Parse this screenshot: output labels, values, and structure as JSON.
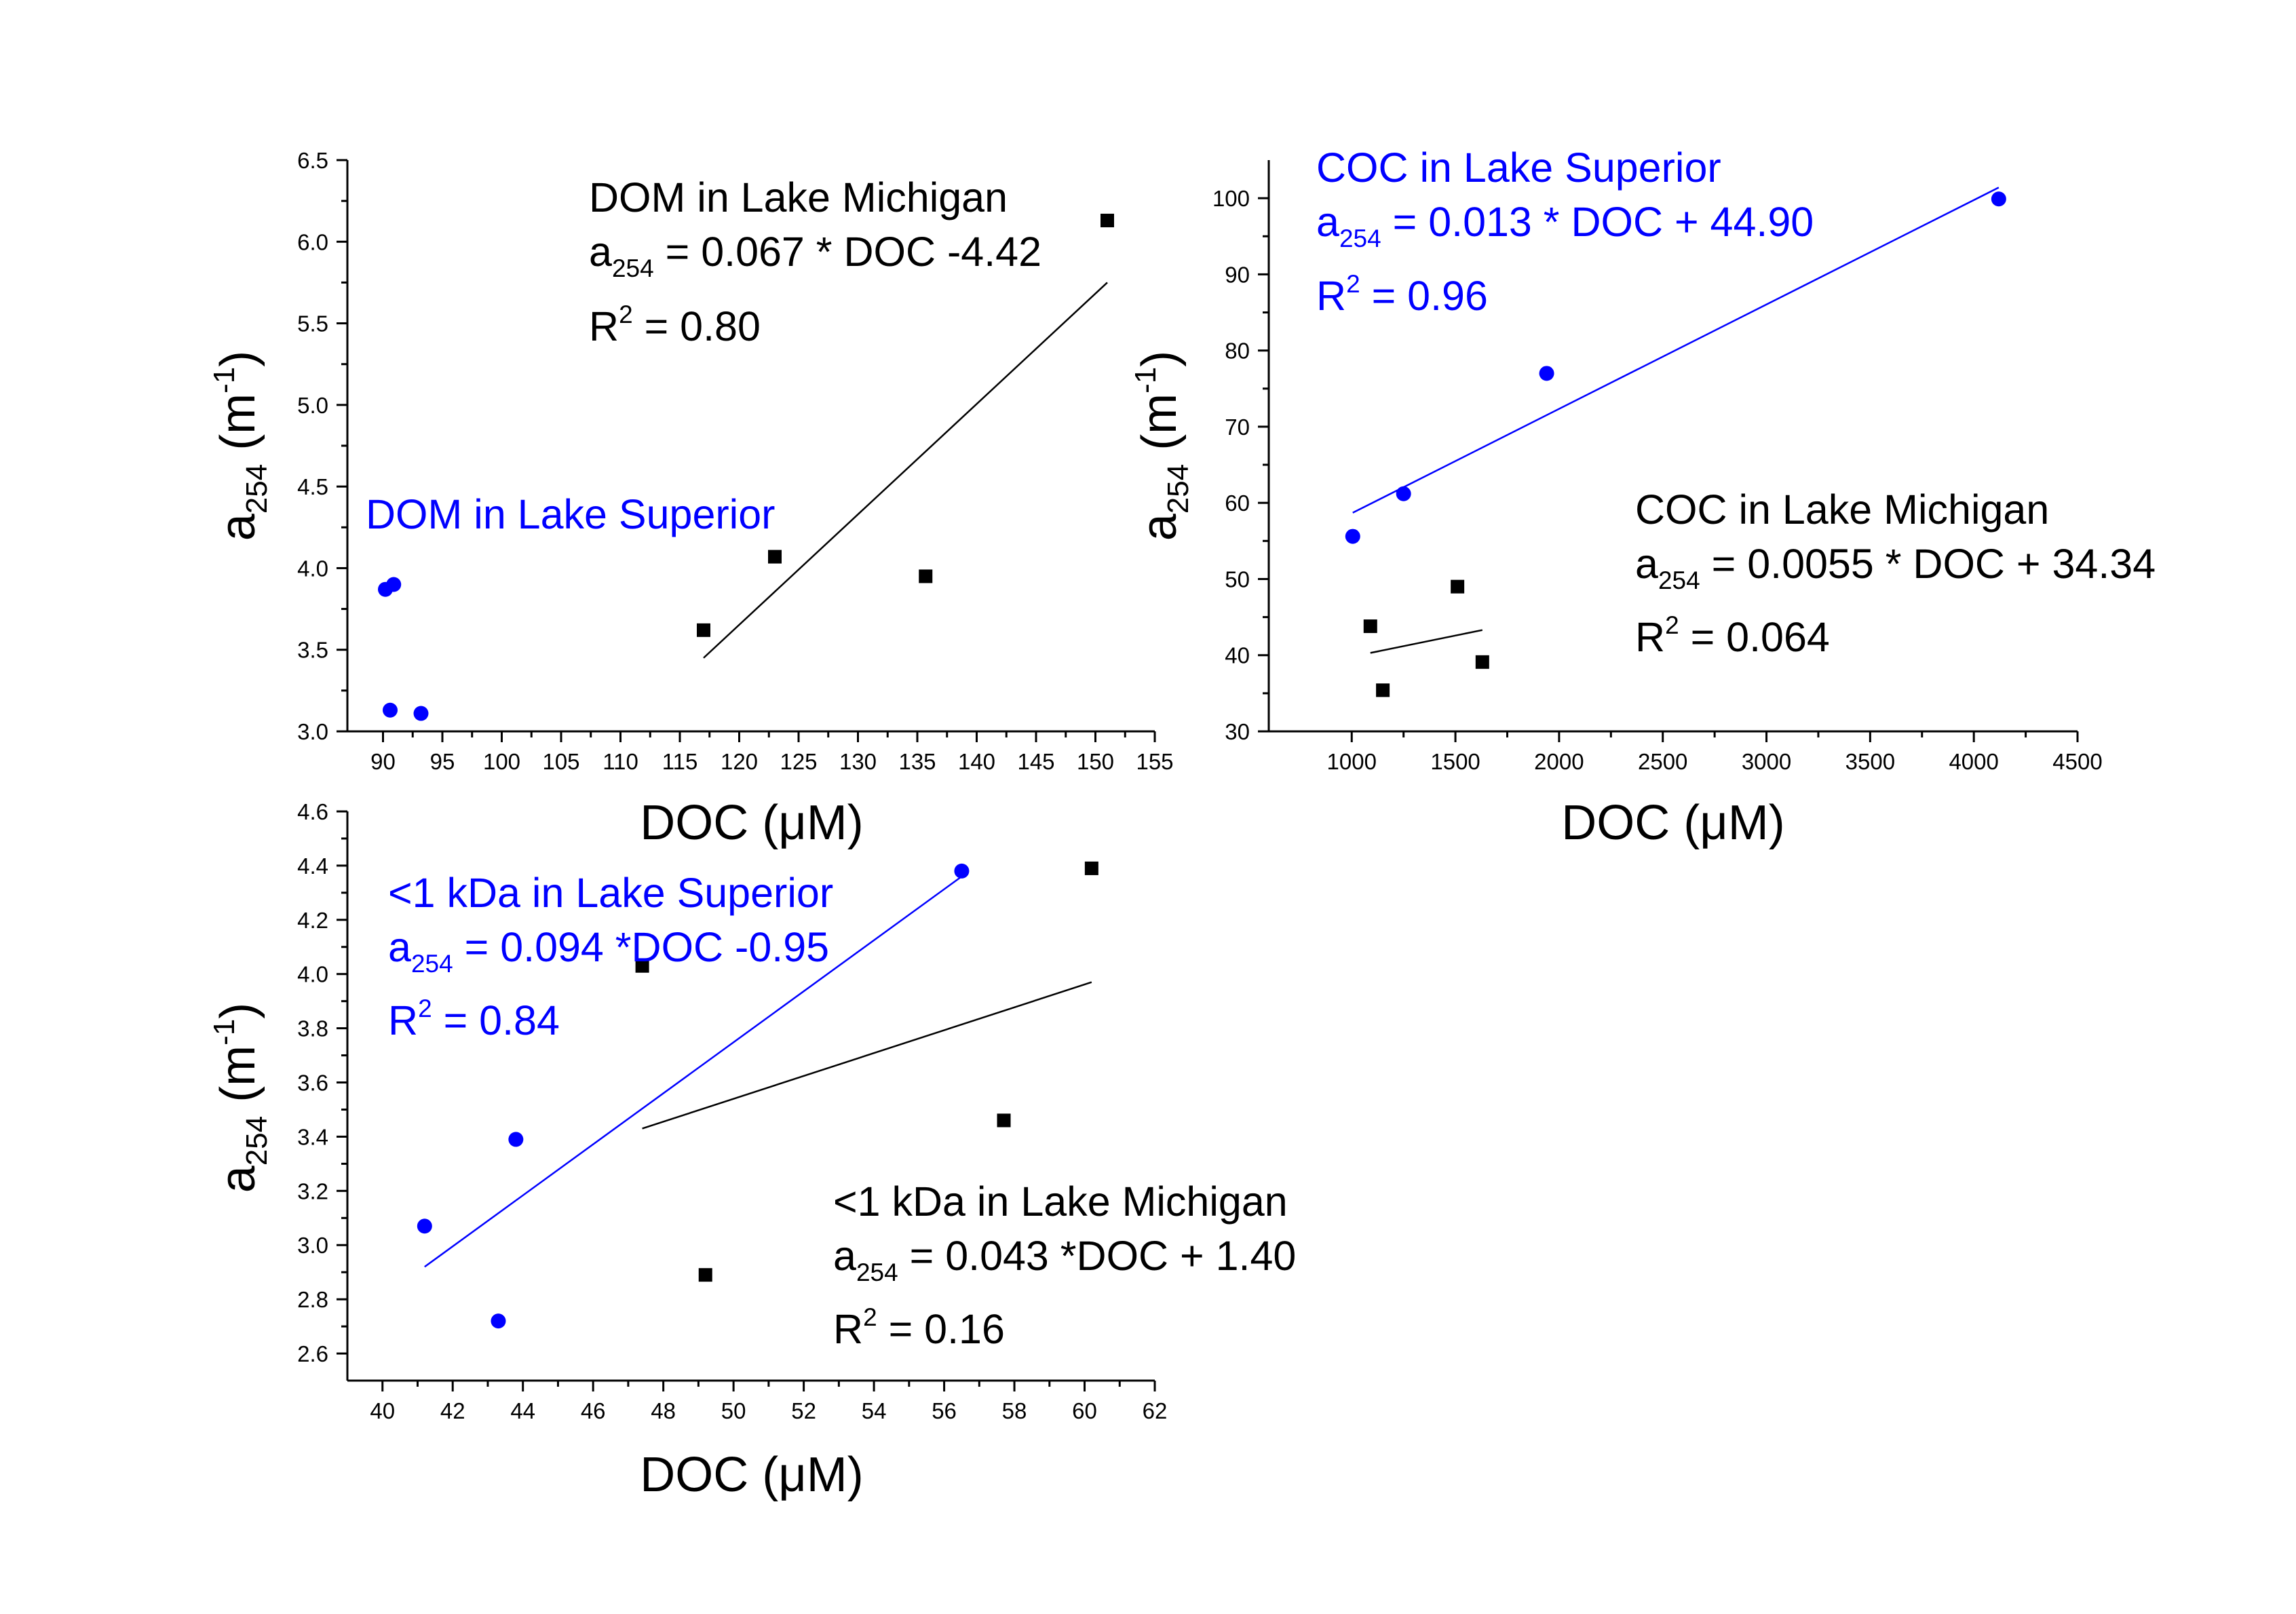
{
  "chart_data": [
    {
      "type": "scatter",
      "xlabel": "DOC (μM)",
      "ylabel": "a254 (m-1)",
      "ylabel_parts": {
        "main": "a",
        "sub": "254",
        "unit_open": " (m",
        "unit_sup": "-1",
        "unit_close": ")"
      },
      "xlim": [
        87,
        155
      ],
      "ylim": [
        3.0,
        6.5
      ],
      "xticks": [
        90,
        95,
        100,
        105,
        110,
        115,
        120,
        125,
        130,
        135,
        140,
        145,
        150,
        155
      ],
      "yticks": [
        3.0,
        3.5,
        4.0,
        4.5,
        5.0,
        5.5,
        6.0,
        6.5
      ],
      "ytick_labels": [
        "3.0",
        "3.5",
        "4.0",
        "4.5",
        "5.0",
        "5.5",
        "6.0",
        "6.5"
      ],
      "grid": false,
      "series": [
        {
          "name": "DOM in Lake Michigan",
          "marker": "square",
          "color": "#000000",
          "points": [
            [
              117.0,
              3.62
            ],
            [
              123.0,
              4.07
            ],
            [
              135.7,
              3.95
            ],
            [
              151.0,
              6.13
            ]
          ],
          "fit": {
            "x": [
              117.0,
              151.0
            ],
            "y": [
              3.45,
              5.75
            ]
          },
          "annotation": [
            "DOM in Lake Michigan",
            "a254 = 0.067 * DOC -4.42",
            "R2 = 0.80"
          ]
        },
        {
          "name": "DOM in Lake Superior",
          "marker": "circle",
          "color": "#0000ff",
          "points": [
            [
              90.2,
              3.87
            ],
            [
              90.9,
              3.9
            ],
            [
              90.6,
              3.13
            ],
            [
              93.2,
              3.11
            ]
          ],
          "annotation": [
            "DOM in Lake Superior"
          ]
        }
      ]
    },
    {
      "type": "scatter",
      "xlabel": "DOC (μM)",
      "ylabel": "a254 (m-1)",
      "ylabel_parts": {
        "main": "a",
        "sub": "254",
        "unit_open": " (m",
        "unit_sup": "-1",
        "unit_close": ")"
      },
      "xlim": [
        600,
        4500
      ],
      "ylim": [
        30,
        105
      ],
      "xticks": [
        1000,
        1500,
        2000,
        2500,
        3000,
        3500,
        4000,
        4500
      ],
      "yticks": [
        30,
        40,
        50,
        60,
        70,
        80,
        90,
        100
      ],
      "ytick_labels": [
        "30",
        "40",
        "50",
        "60",
        "70",
        "80",
        "90",
        "100"
      ],
      "grid": false,
      "series": [
        {
          "name": "COC in Lake Superior",
          "marker": "circle",
          "color": "#0000ff",
          "points": [
            [
              1005,
              55.6
            ],
            [
              1250,
              61.2
            ],
            [
              1940,
              77.0
            ],
            [
              4120,
              99.9
            ]
          ],
          "fit": {
            "x": [
              1005,
              4120
            ],
            "y": [
              58.7,
              101.4
            ]
          },
          "annotation": [
            "COC in Lake Superior",
            "a254 = 0.013 * DOC + 44.90",
            "R2 = 0.96"
          ]
        },
        {
          "name": "COC in Lake Michigan",
          "marker": "square",
          "color": "#000000",
          "points": [
            [
              1090,
              43.8
            ],
            [
              1150,
              35.4
            ],
            [
              1510,
              49.0
            ],
            [
              1630,
              39.1
            ]
          ],
          "fit": {
            "x": [
              1090,
              1630
            ],
            "y": [
              40.3,
              43.3
            ]
          },
          "annotation": [
            "COC in Lake Michigan",
            "a254 = 0.0055 * DOC + 34.34",
            "R2 = 0.064"
          ]
        }
      ]
    },
    {
      "type": "scatter",
      "xlabel": "DOC (μM)",
      "ylabel": "a254 (m-1)",
      "ylabel_parts": {
        "main": "a",
        "sub": "254",
        "unit_open": " (m",
        "unit_sup": "-1",
        "unit_close": ")"
      },
      "xlim": [
        39,
        62
      ],
      "ylim": [
        2.5,
        4.6
      ],
      "xticks": [
        40,
        42,
        44,
        46,
        48,
        50,
        52,
        54,
        56,
        58,
        60,
        62
      ],
      "yticks": [
        2.6,
        2.8,
        3.0,
        3.2,
        3.4,
        3.6,
        3.8,
        4.0,
        4.2,
        4.4,
        4.6
      ],
      "ytick_labels": [
        "2.6",
        "2.8",
        "3.0",
        "3.2",
        "3.4",
        "3.6",
        "3.8",
        "4.0",
        "4.2",
        "4.4",
        "4.6"
      ],
      "grid": false,
      "series": [
        {
          "name": "<1 kDa in Lake Superior",
          "marker": "circle",
          "color": "#0000ff",
          "points": [
            [
              41.2,
              3.07
            ],
            [
              43.3,
              2.72
            ],
            [
              43.8,
              3.39
            ],
            [
              56.5,
              4.38
            ]
          ],
          "fit": {
            "x": [
              41.2,
              56.5
            ],
            "y": [
              2.92,
              4.36
            ]
          },
          "annotation": [
            "<1 kDa in Lake Superior",
            "a254 = 0.094 *DOC -0.95",
            "R2 = 0.84"
          ]
        },
        {
          "name": "<1 kDa in Lake Michigan",
          "marker": "square",
          "color": "#000000",
          "points": [
            [
              47.4,
              4.03
            ],
            [
              49.2,
              2.89
            ],
            [
              57.7,
              3.46
            ],
            [
              60.2,
              4.39
            ]
          ],
          "fit": {
            "x": [
              47.4,
              60.2
            ],
            "y": [
              3.43,
              3.97
            ]
          },
          "annotation": [
            "<1 kDa in Lake Michigan",
            "a254 = 0.043 *DOC + 1.40",
            "R2 = 0.16"
          ]
        }
      ]
    }
  ],
  "annotations": [
    {
      "title": "DOM in Lake Michigan",
      "eq_main": "a",
      "eq_sub": "254",
      "eq_rest": " = 0.067 * DOC -4.42",
      "r_main": "R",
      "r_sup": "2",
      "r_rest": " = 0.80",
      "color": "#000000"
    },
    {
      "title": "DOM in Lake Superior",
      "color": "#0000ff"
    },
    {
      "title": "COC in Lake Superior",
      "eq_main": "a",
      "eq_sub": "254",
      "eq_rest": " = 0.013 * DOC + 44.90",
      "r_main": "R",
      "r_sup": "2",
      "r_rest": " = 0.96",
      "color": "#0000ff"
    },
    {
      "title": "COC in Lake Michigan",
      "eq_main": "a",
      "eq_sub": "254",
      "eq_rest": " = 0.0055 * DOC + 34.34",
      "r_main": "R",
      "r_sup": "2",
      "r_rest": " = 0.064",
      "color": "#000000"
    },
    {
      "title": "<1 kDa in Lake Superior",
      "eq_main": "a",
      "eq_sub": "254",
      "eq_rest": " = 0.094 *DOC -0.95",
      "r_main": "R",
      "r_sup": "2",
      "r_rest": " = 0.84",
      "color": "#0000ff"
    },
    {
      "title": "<1 kDa in Lake Michigan",
      "eq_main": "a",
      "eq_sub": "254",
      "eq_rest": " = 0.043 *DOC + 1.40",
      "r_main": "R",
      "r_sup": "2",
      "r_rest": " = 0.16",
      "color": "#000000"
    }
  ]
}
